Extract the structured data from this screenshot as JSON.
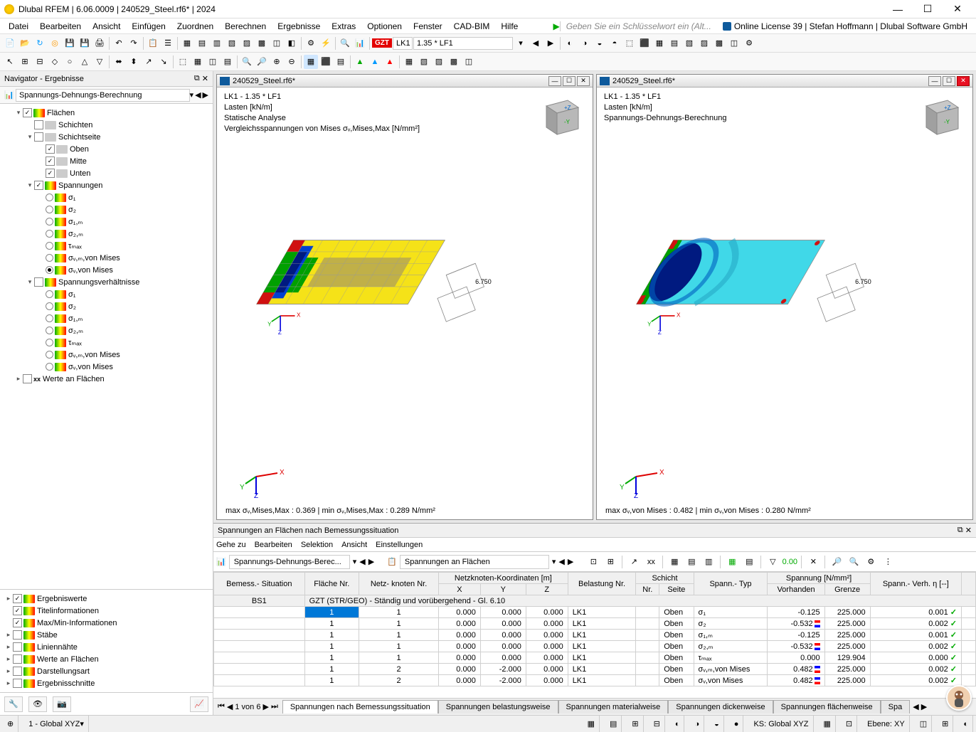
{
  "titlebar": {
    "title": "Dlubal RFEM | 6.06.0009 | 240529_Steel.rf6* | 2024"
  },
  "menu": {
    "items": [
      "Datei",
      "Bearbeiten",
      "Ansicht",
      "Einfügen",
      "Zuordnen",
      "Berechnen",
      "Ergebnisse",
      "Extras",
      "Optionen",
      "Fenster",
      "CAD-BIM",
      "Hilfe"
    ],
    "searchHint": "Geben Sie ein Schlüsselwort ein (Alt...",
    "license": "Online License 39 | Stefan Hoffmann | Dlubal Software GmbH"
  },
  "toolbar1": {
    "gzt": "GZT",
    "lk": "LK1",
    "lf": "1.35 * LF1"
  },
  "navigator": {
    "title": "Navigator - Ergebnisse",
    "combo": "Spannungs-Dehnungs-Berechnung",
    "tree": {
      "flaechen": "Flächen",
      "schichten": "Schichten",
      "schichtseite": "Schichtseite",
      "oben": "Oben",
      "mitte": "Mitte",
      "unten": "Unten",
      "spannungen": "Spannungen",
      "s1": "σ₁",
      "s2": "σ₂",
      "s1m": "σ₁,ₘ",
      "s2m": "σ₂,ₘ",
      "tmax": "τₘₐₓ",
      "svmvm": "σᵥ,ₘ,von Mises",
      "svvm": "σᵥ,von Mises",
      "spverh": "Spannungsverhältnisse",
      "werte": "Werte an Flächen"
    },
    "lower": {
      "ergebniswerte": "Ergebniswerte",
      "titelinfo": "Titelinformationen",
      "maxmin": "Max/Min-Informationen",
      "staebe": "Stäbe",
      "liniennaehte": "Liniennähte",
      "werteflaechen": "Werte an Flächen",
      "darstellung": "Darstellungsart",
      "ergschnitte": "Ergebnisschnitte"
    }
  },
  "vp1": {
    "file": "240529_Steel.rf6*",
    "l1": "LK1 - 1.35 * LF1",
    "l2": "Lasten [kN/m]",
    "l3": "Statische Analyse",
    "l4": "Vergleichsspannungen von Mises σᵥ,Mises,Max [N/mm²]",
    "load": "6.750",
    "foot": "max σᵥ,Mises,Max : 0.369 | min σᵥ,Mises,Max : 0.289 N/mm²"
  },
  "vp2": {
    "file": "240529_Steel.rf6*",
    "l1": "LK1 - 1.35 * LF1",
    "l2": "Lasten [kN/m]",
    "l3": "Spannungs-Dehnungs-Berechnung",
    "load": "6.750",
    "foot": "max σᵥ,von Mises : 0.482 | min σᵥ,von Mises : 0.280 N/mm²"
  },
  "results": {
    "title": "Spannungen an Flächen nach Bemessungssituation",
    "menus": [
      "Gehe zu",
      "Bearbeiten",
      "Selektion",
      "Ansicht",
      "Einstellungen"
    ],
    "combo1": "Spannungs-Dehnungs-Berec...",
    "combo2": "Spannungen an Flächen",
    "headers": {
      "bemess": "Bemess.-\nSituation",
      "flaeche": "Fläche\nNr.",
      "netz": "Netz-\nknoten Nr.",
      "koord": "Netzknoten-Koordinaten [m]",
      "x": "X",
      "y": "Y",
      "z": "Z",
      "belast": "Belastung\nNr.",
      "schicht": "Schicht",
      "snr": "Nr.",
      "seite": "Seite",
      "sptyp": "Spann.-\nTyp",
      "spannung": "Spannung [N/mm²]",
      "vorh": "Vorhanden",
      "grenze": "Grenze",
      "verh": "Spann.-\nVerh. η [--]"
    },
    "groupLabel": "BS1",
    "groupText": "GZT (STR/GEO) - Ständig und vorübergehend - Gl. 6.10",
    "rows": [
      {
        "fl": "1",
        "nk": "1",
        "x": "0.000",
        "y": "0.000",
        "z": "0.000",
        "bl": "LK1",
        "seite": "Oben",
        "typ": "σ₁",
        "vorh": "-0.125",
        "flag": "",
        "gr": "225.000",
        "eta": "0.001"
      },
      {
        "fl": "1",
        "nk": "1",
        "x": "0.000",
        "y": "0.000",
        "z": "0.000",
        "bl": "LK1",
        "seite": "Oben",
        "typ": "σ₂",
        "vorh": "-0.532",
        "flag": "red",
        "gr": "225.000",
        "eta": "0.002"
      },
      {
        "fl": "1",
        "nk": "1",
        "x": "0.000",
        "y": "0.000",
        "z": "0.000",
        "bl": "LK1",
        "seite": "Oben",
        "typ": "σ₁,ₘ",
        "vorh": "-0.125",
        "flag": "",
        "gr": "225.000",
        "eta": "0.001"
      },
      {
        "fl": "1",
        "nk": "1",
        "x": "0.000",
        "y": "0.000",
        "z": "0.000",
        "bl": "LK1",
        "seite": "Oben",
        "typ": "σ₂,ₘ",
        "vorh": "-0.532",
        "flag": "red",
        "gr": "225.000",
        "eta": "0.002"
      },
      {
        "fl": "1",
        "nk": "1",
        "x": "0.000",
        "y": "0.000",
        "z": "0.000",
        "bl": "LK1",
        "seite": "Oben",
        "typ": "τₘₐₓ",
        "vorh": "0.000",
        "flag": "",
        "gr": "129.904",
        "eta": "0.000"
      },
      {
        "fl": "1",
        "nk": "2",
        "x": "0.000",
        "y": "-2.000",
        "z": "0.000",
        "bl": "LK1",
        "seite": "Oben",
        "typ": "σᵥ,ₘ,von Mises",
        "vorh": "0.482",
        "flag": "blue",
        "gr": "225.000",
        "eta": "0.002"
      },
      {
        "fl": "1",
        "nk": "2",
        "x": "0.000",
        "y": "-2.000",
        "z": "0.000",
        "bl": "LK1",
        "seite": "Oben",
        "typ": "σᵥ,von Mises",
        "vorh": "0.482",
        "flag": "blue",
        "gr": "225.000",
        "eta": "0.002"
      }
    ],
    "pageNav": "1 von 6",
    "tabs": [
      "Spannungen nach Bemessungssituation",
      "Spannungen belastungsweise",
      "Spannungen materialweise",
      "Spannungen dickenweise",
      "Spannungen flächenweise",
      "Spa"
    ]
  },
  "status": {
    "cs": "1 - Global XYZ",
    "ks": "KS: Global XYZ",
    "ebene": "Ebene: XY"
  },
  "colors": {
    "yellow": "#f5e218",
    "green": "#00a000",
    "blue": "#0040d0",
    "red": "#d01010",
    "darkblue": "#001a80",
    "cyan": "#40d8e8",
    "cube": "#b0b0b0"
  }
}
